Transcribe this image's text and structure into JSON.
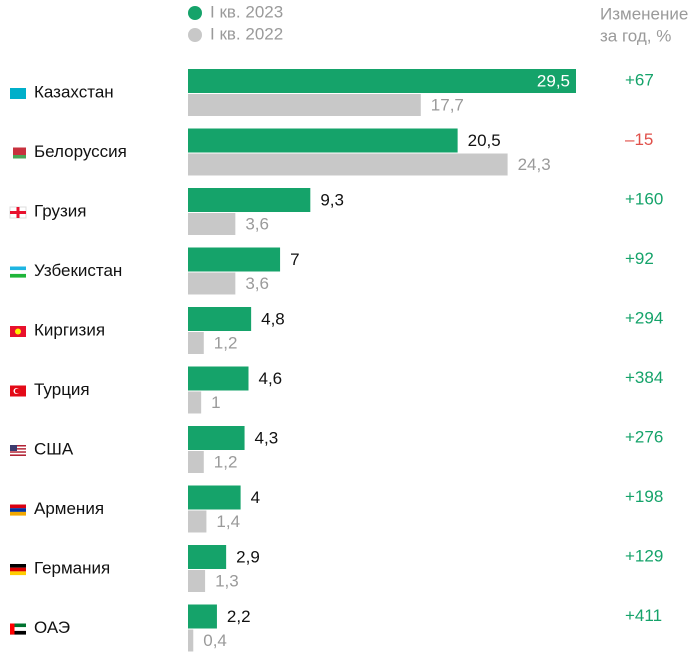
{
  "chart_data": {
    "type": "bar",
    "categories": [
      "Казахстан",
      "Белоруссия",
      "Грузия",
      "Узбекистан",
      "Киргизия",
      "Турция",
      "США",
      "Армения",
      "Германия",
      "ОАЭ"
    ],
    "series": [
      {
        "name": "I кв. 2023",
        "color": "#15a36a",
        "values": [
          29.5,
          20.5,
          9.3,
          7,
          4.8,
          4.6,
          4.3,
          4,
          2.9,
          2.2
        ],
        "value_labels": [
          "29,5",
          "20,5",
          "9,3",
          "7",
          "4,8",
          "4,6",
          "4,3",
          "4",
          "2,9",
          "2,2"
        ]
      },
      {
        "name": "I кв. 2022",
        "color": "#c8c8c8",
        "values": [
          17.7,
          24.3,
          3.6,
          3.6,
          1.2,
          1,
          1.2,
          1.4,
          1.3,
          0.4
        ],
        "value_labels": [
          "17,7",
          "24,3",
          "3,6",
          "3,6",
          "1,2",
          "1",
          "1,2",
          "1,4",
          "1,3",
          "0,4"
        ]
      }
    ],
    "change": {
      "title": [
        "Изменение",
        "за год, %"
      ],
      "values": [
        67,
        -15,
        160,
        92,
        294,
        384,
        276,
        198,
        129,
        411
      ],
      "value_labels": [
        "+67",
        "–15",
        "+160",
        "+92",
        "+294",
        "+384",
        "+276",
        "+198",
        "+129",
        "+411"
      ],
      "positive_color": "#15a36a",
      "negative_color": "#e0504a"
    }
  }
}
